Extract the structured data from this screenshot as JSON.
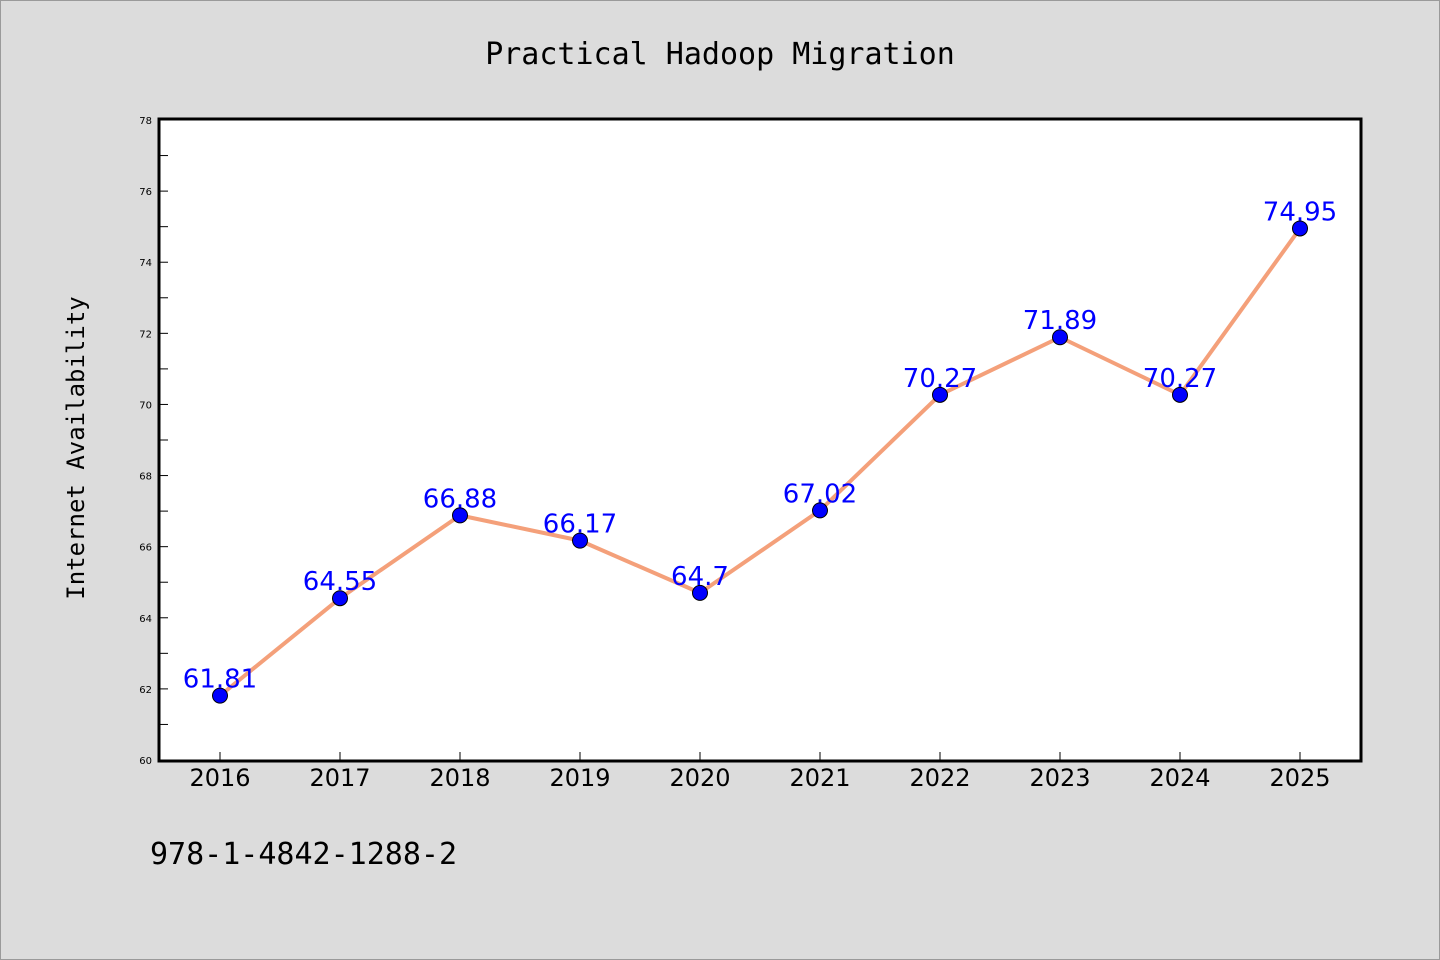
{
  "chart_data": {
    "type": "line",
    "title": "Practical Hadoop Migration",
    "xlabel": "",
    "ylabel": "Internet Availability",
    "categories": [
      "2016",
      "2017",
      "2018",
      "2019",
      "2020",
      "2021",
      "2022",
      "2023",
      "2024",
      "2025"
    ],
    "series": [
      {
        "values": [
          61.81,
          64.55,
          66.88,
          66.17,
          64.7,
          67.02,
          70.27,
          71.89,
          70.27,
          74.95
        ],
        "labels": [
          "61.81",
          "64.55",
          "66.88",
          "66.17",
          "64.7",
          "67.02",
          "70.27",
          "71.89",
          "70.27",
          "74.95"
        ],
        "line_color": "#f4a07a",
        "marker_color": "#0000ff"
      }
    ],
    "ylim": [
      60,
      78
    ],
    "yticks": [
      "60",
      "62",
      "64",
      "66",
      "68",
      "70",
      "72",
      "74",
      "76",
      "78"
    ],
    "grid": false,
    "legend": "none"
  },
  "footer": {
    "isbn": "978-1-4842-1288-2"
  },
  "colors": {
    "background": "#dcdcdc",
    "plot_background": "#ffffff"
  }
}
